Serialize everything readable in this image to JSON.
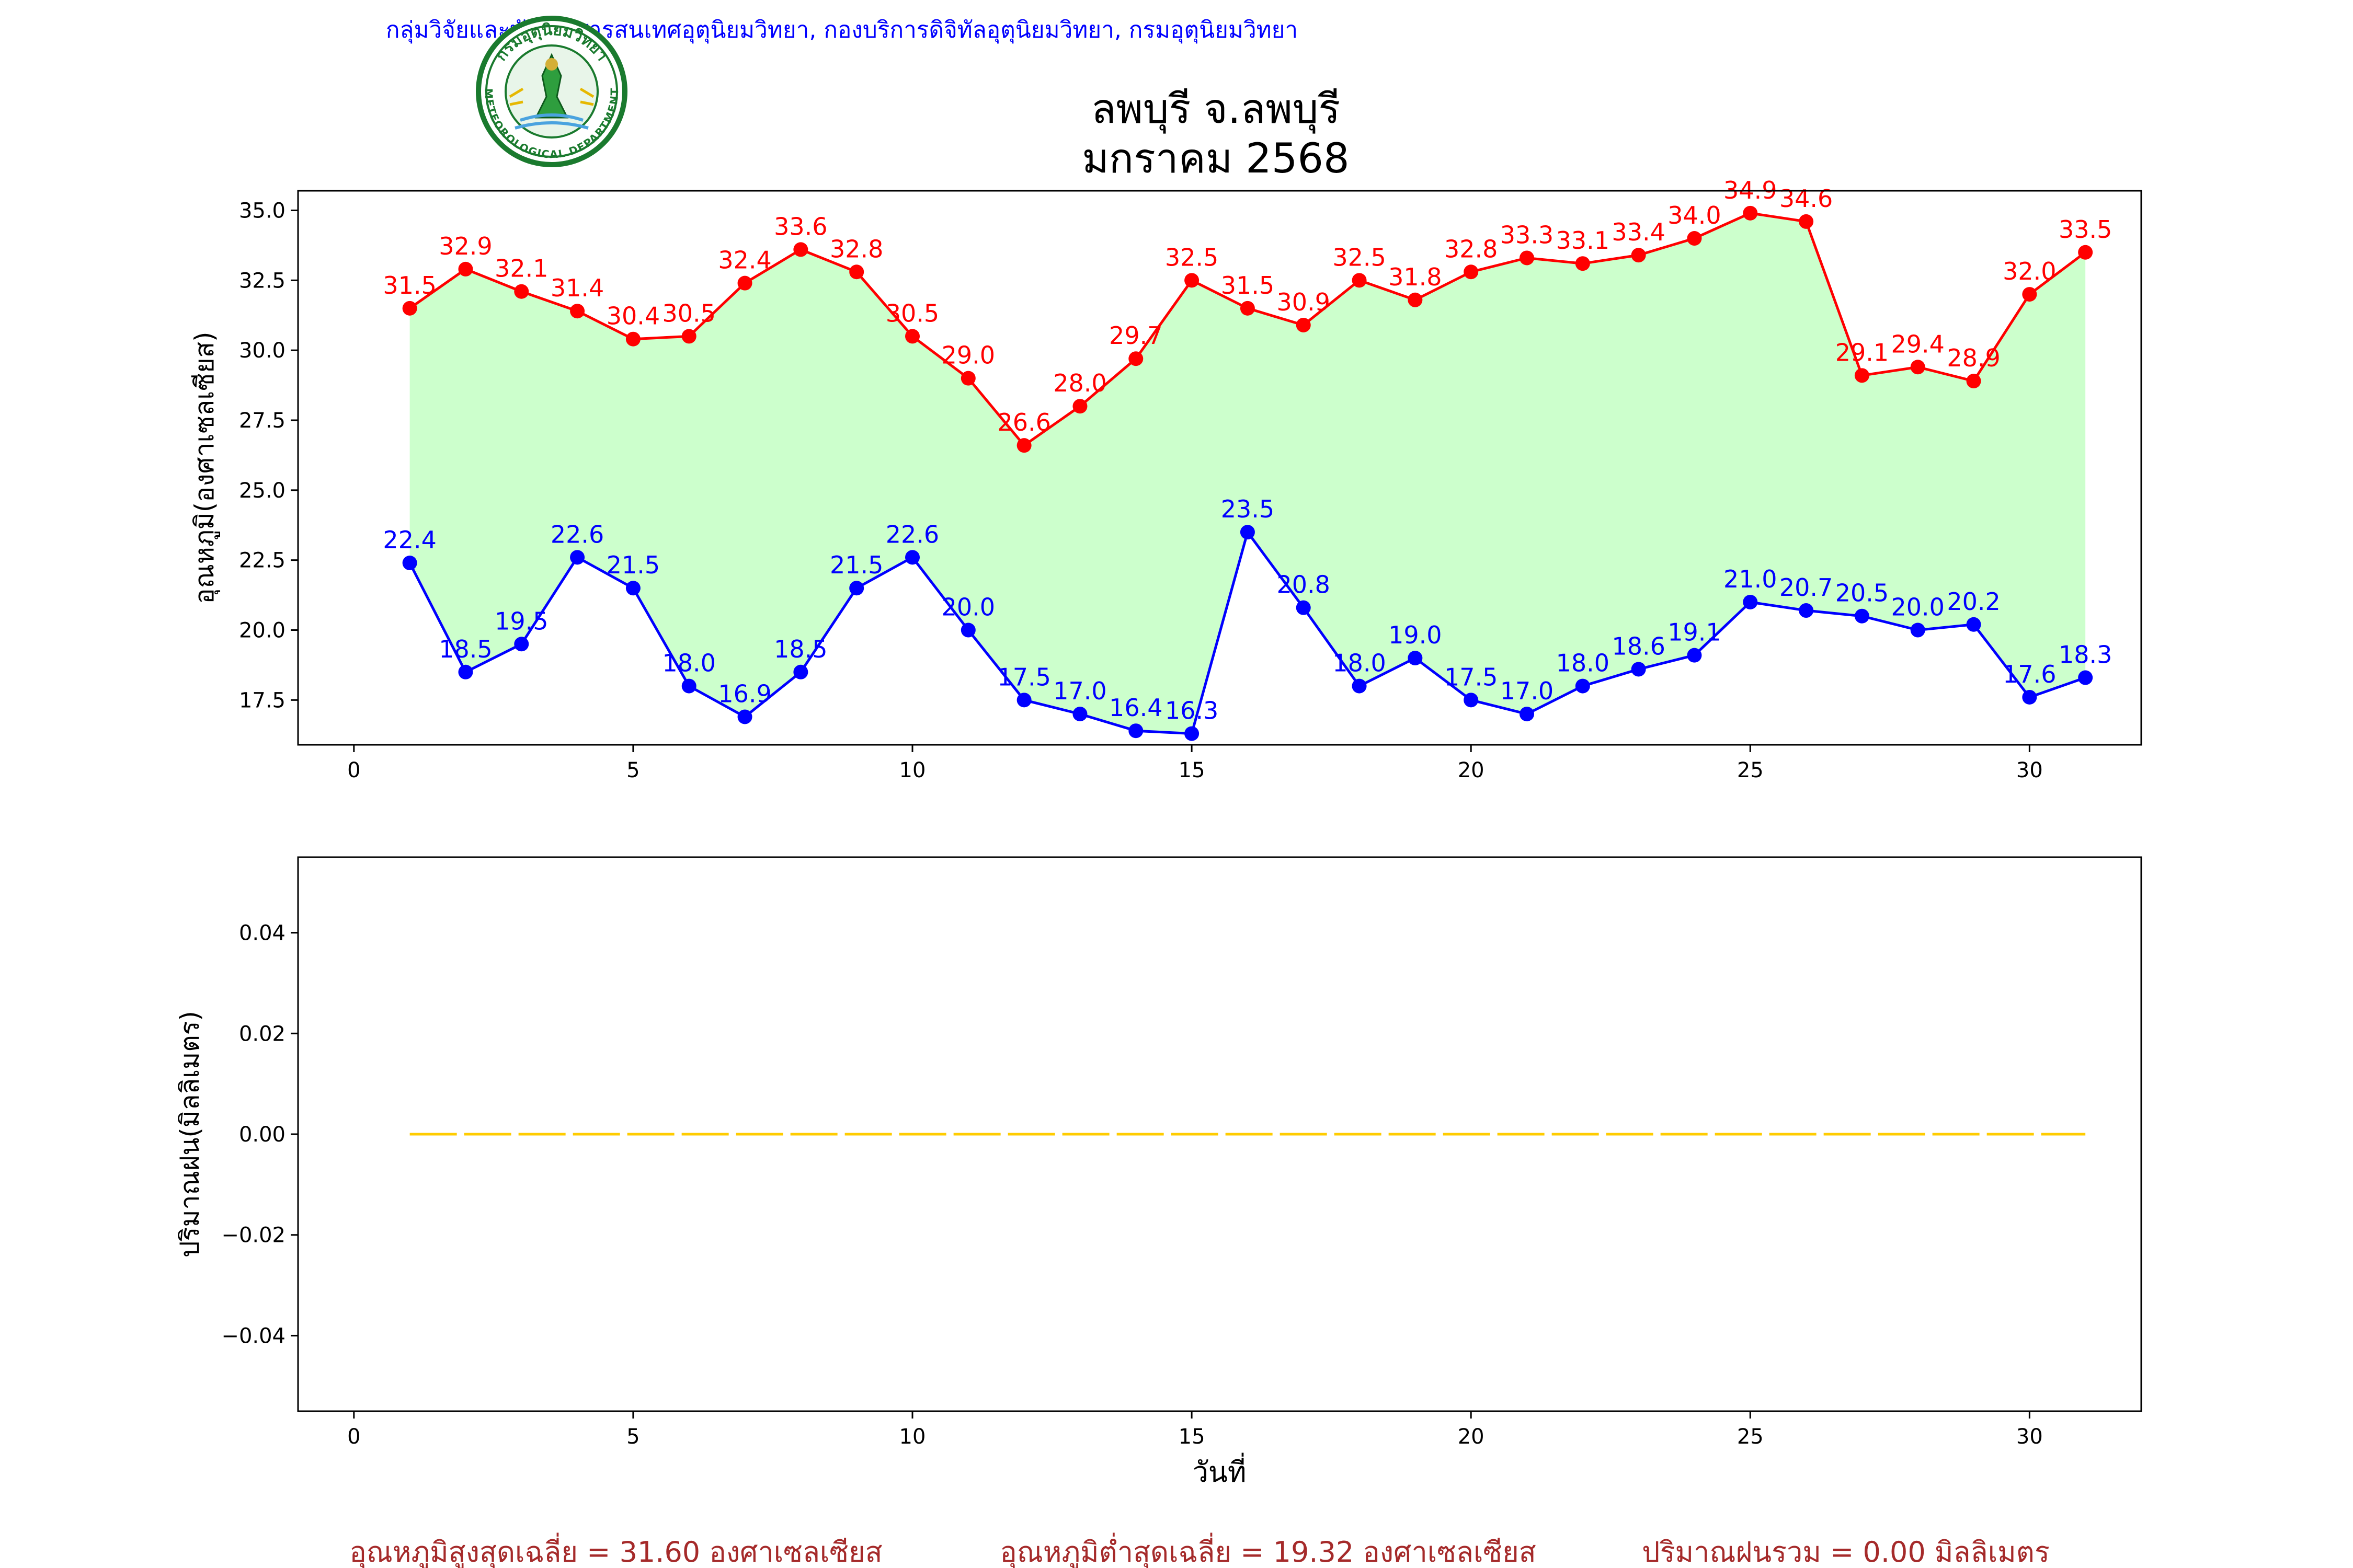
{
  "header": {
    "agency_line": "กลุ่มวิจัยและพัฒนาสารสนเทศอุตุนิยมวิทยา, กองบริการดิจิทัลอุตุนิยมวิทยา, กรมอุตุนิยมวิทยา",
    "logo_text_top": "กรมอุตุนิยมวิทยา",
    "logo_text_bottom": "METEOROLOGICAL DEPARTMENT"
  },
  "colors": {
    "max_line": "#ff0000",
    "min_line": "#0000ff",
    "fill": "#ccffcc",
    "rain_line": "#ffcc00",
    "footer_text": "#a52a2a",
    "header_text": "#0000ff",
    "logo_green": "#1a7a2e"
  },
  "chart_data": [
    {
      "type": "line",
      "title": "ลพบุรี จ.ลพบุรี",
      "subtitle": "มกราคม 2568",
      "ylabel": "อุณหภูมิ(องศาเซลเซียส)",
      "xlabel": "",
      "xlim": [
        -1,
        32
      ],
      "ylim": [
        15.9,
        35.7
      ],
      "xticks": [
        0,
        5,
        10,
        15,
        20,
        25,
        30
      ],
      "yticks": [
        17.5,
        20.0,
        22.5,
        25.0,
        27.5,
        30.0,
        32.5,
        35.0
      ],
      "grid": false,
      "x": [
        1,
        2,
        3,
        4,
        5,
        6,
        7,
        8,
        9,
        10,
        11,
        12,
        13,
        14,
        15,
        16,
        17,
        18,
        19,
        20,
        21,
        22,
        23,
        24,
        25,
        26,
        27,
        28,
        29,
        30,
        31
      ],
      "series": [
        {
          "values": [
            31.5,
            32.9,
            32.1,
            31.4,
            30.4,
            30.5,
            32.4,
            33.6,
            32.8,
            30.5,
            29.0,
            26.6,
            28.0,
            29.7,
            32.5,
            31.5,
            30.9,
            32.5,
            31.8,
            32.8,
            33.3,
            33.1,
            33.4,
            34.0,
            34.9,
            34.6,
            29.1,
            29.4,
            28.9,
            32.0,
            33.5
          ],
          "labels": [
            "31.5",
            "32.9",
            "32.1",
            "31.4",
            "30.4",
            "30.5",
            "32.4",
            "33.6",
            "32.8",
            "30.5",
            "29.0",
            "26.6",
            "28.0",
            "29.7",
            "32.5",
            "31.5",
            "30.9",
            "32.5",
            "31.8",
            "32.8",
            "33.3",
            "33.1",
            "33.4",
            "34.0",
            "34.9",
            "34.6",
            "29.1",
            "29.4",
            "28.9",
            "32.0",
            "33.5"
          ]
        },
        {
          "values": [
            22.4,
            18.5,
            19.5,
            22.6,
            21.5,
            18.0,
            16.9,
            18.5,
            21.5,
            22.6,
            20.0,
            17.5,
            17.0,
            16.4,
            16.3,
            23.5,
            20.8,
            18.0,
            19.0,
            17.5,
            17.0,
            18.0,
            18.6,
            19.1,
            21.0,
            20.7,
            20.5,
            20.0,
            20.2,
            17.6,
            18.3
          ],
          "labels": [
            "22.4",
            "18.5",
            "19.5",
            "22.6",
            "21.5",
            "18.0",
            "16.9",
            "18.5",
            "21.5",
            "22.6",
            "20.0",
            "17.5",
            "17.0",
            "16.4",
            "16.3",
            "23.5",
            "20.8",
            "18.0",
            "19.0",
            "17.5",
            "17.0",
            "18.0",
            "18.6",
            "19.1",
            "21.0",
            "20.7",
            "20.5",
            "20.0",
            "20.2",
            "17.6",
            "18.3"
          ]
        }
      ]
    },
    {
      "type": "line",
      "ylabel": "ปริมาณฝน(มิลลิเมตร)",
      "xlabel": "วันที่",
      "xlim": [
        -1,
        32
      ],
      "ylim": [
        -0.055,
        0.055
      ],
      "xticks": [
        0,
        5,
        10,
        15,
        20,
        25,
        30
      ],
      "yticks": [
        -0.04,
        -0.02,
        0.0,
        0.02,
        0.04
      ],
      "ytick_labels": [
        "−0.04",
        "−0.02",
        "0.00",
        "0.02",
        "0.04"
      ],
      "grid": false,
      "x": [
        1,
        2,
        3,
        4,
        5,
        6,
        7,
        8,
        9,
        10,
        11,
        12,
        13,
        14,
        15,
        16,
        17,
        18,
        19,
        20,
        21,
        22,
        23,
        24,
        25,
        26,
        27,
        28,
        29,
        30,
        31
      ],
      "series": [
        {
          "values": [
            0,
            0,
            0,
            0,
            0,
            0,
            0,
            0,
            0,
            0,
            0,
            0,
            0,
            0,
            0,
            0,
            0,
            0,
            0,
            0,
            0,
            0,
            0,
            0,
            0,
            0,
            0,
            0,
            0,
            0,
            0
          ],
          "style": "dashed"
        }
      ]
    }
  ],
  "footer": {
    "avg_max": "อุณหภูมิสูงสุดเฉลี่ย = 31.60 องศาเซลเซียส",
    "avg_min": "อุณหภูมิต่ำสุดเฉลี่ย = 19.32 องศาเซลเซียส",
    "rain_total": "ปริมาณฝนรวม = 0.00 มิลลิเมตร"
  }
}
